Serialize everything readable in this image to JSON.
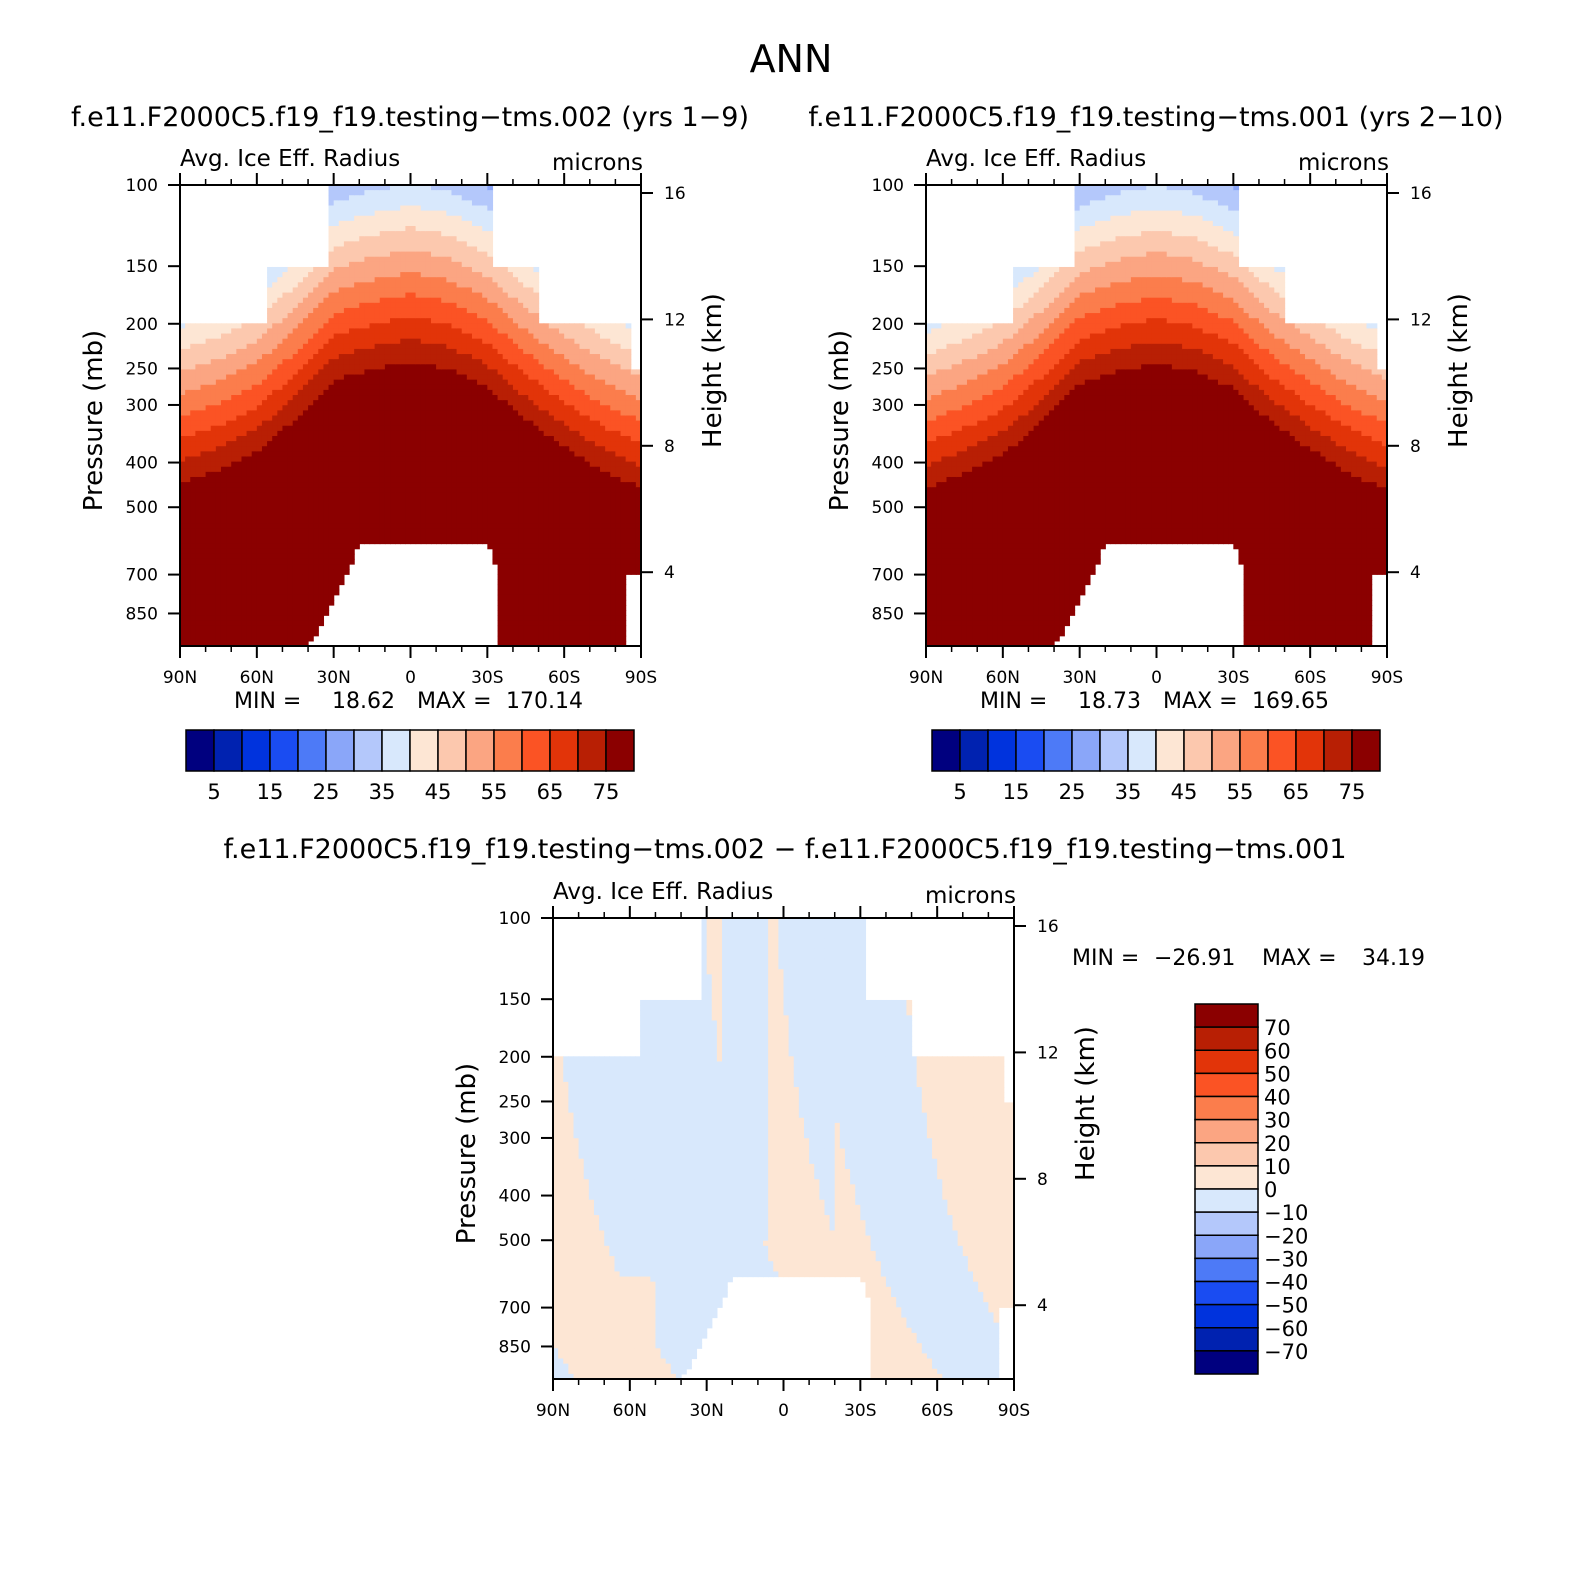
{
  "page_title": "ANN",
  "chart_data": [
    {
      "type": "heatmap",
      "subtype": "latitude-pressure filled contour",
      "title": "f.e11.F2000C5.f19_f19.testing−tms.002 (yrs 1−9)",
      "left_string": "Avg. Ice Eff. Radius",
      "right_string": "microns",
      "xlabel": "",
      "ylabel": "Pressure (mb)",
      "ylabel_right": "Height (km)",
      "x_ticks": [
        "90N",
        "60N",
        "30N",
        "0",
        "30S",
        "60S",
        "90S"
      ],
      "x_values": [
        90,
        60,
        30,
        0,
        -30,
        -60,
        -90
      ],
      "y_ticks": [
        100,
        150,
        200,
        250,
        300,
        400,
        500,
        700,
        850
      ],
      "y_right_ticks": [
        16,
        12,
        8,
        4
      ],
      "y_scale": "log",
      "ylim": [
        100,
        1000
      ],
      "min_label": "MIN =",
      "min_value": "18.62",
      "max_label": "MAX =",
      "max_value": "170.14",
      "colorbar": {
        "orientation": "horizontal",
        "labels": [
          "5",
          "15",
          "25",
          "35",
          "45",
          "55",
          "65",
          "75"
        ],
        "levels": [
          0,
          5,
          10,
          15,
          20,
          25,
          30,
          35,
          40,
          45,
          50,
          55,
          60,
          65,
          70,
          75
        ],
        "colors": [
          "#00007f",
          "#0022b0",
          "#0033dd",
          "#1a4cf2",
          "#4d7af7",
          "#8aa6f9",
          "#b4c8fb",
          "#d8e8fc",
          "#fde6d4",
          "#fcc8ae",
          "#fba582",
          "#fb7d4c",
          "#fb5324",
          "#e23409",
          "#b81f04",
          "#8b0000"
        ]
      },
      "field_profile": {
        "description": "contour band index vs latitude/pressure; bottom surface of high values is tropopause-shaped",
        "lat": [
          90,
          75,
          60,
          45,
          30,
          15,
          0,
          -15,
          -30,
          -45,
          -60,
          -75,
          -90
        ],
        "p_top_of_max_band": [
          470,
          440,
          400,
          340,
          280,
          265,
          255,
          265,
          290,
          340,
          390,
          440,
          480
        ]
      }
    },
    {
      "type": "heatmap",
      "subtype": "latitude-pressure filled contour",
      "title": "f.e11.F2000C5.f19_f19.testing−tms.001 (yrs 2−10)",
      "left_string": "Avg. Ice Eff. Radius",
      "right_string": "microns",
      "xlabel": "",
      "ylabel": "Pressure (mb)",
      "ylabel_right": "Height (km)",
      "x_ticks": [
        "90N",
        "60N",
        "30N",
        "0",
        "30S",
        "60S",
        "90S"
      ],
      "x_values": [
        90,
        60,
        30,
        0,
        -30,
        -60,
        -90
      ],
      "y_ticks": [
        100,
        150,
        200,
        250,
        300,
        400,
        500,
        700,
        850
      ],
      "y_right_ticks": [
        16,
        12,
        8,
        4
      ],
      "y_scale": "log",
      "ylim": [
        100,
        1000
      ],
      "min_label": "MIN =",
      "min_value": "18.73",
      "max_label": "MAX =",
      "max_value": "169.65",
      "colorbar": {
        "orientation": "horizontal",
        "labels": [
          "5",
          "15",
          "25",
          "35",
          "45",
          "55",
          "65",
          "75"
        ],
        "levels": [
          0,
          5,
          10,
          15,
          20,
          25,
          30,
          35,
          40,
          45,
          50,
          55,
          60,
          65,
          70,
          75
        ],
        "colors": [
          "#00007f",
          "#0022b0",
          "#0033dd",
          "#1a4cf2",
          "#4d7af7",
          "#8aa6f9",
          "#b4c8fb",
          "#d8e8fc",
          "#fde6d4",
          "#fcc8ae",
          "#fba582",
          "#fb7d4c",
          "#fb5324",
          "#e23409",
          "#b81f04",
          "#8b0000"
        ]
      },
      "field_profile": {
        "description": "contour band index vs latitude/pressure; bottom surface of high values is tropopause-shaped",
        "lat": [
          90,
          75,
          60,
          45,
          30,
          15,
          0,
          -15,
          -30,
          -45,
          -60,
          -75,
          -90
        ],
        "p_top_of_max_band": [
          480,
          445,
          405,
          345,
          285,
          268,
          258,
          268,
          292,
          345,
          395,
          445,
          485
        ]
      }
    },
    {
      "type": "heatmap",
      "subtype": "latitude-pressure difference filled contour",
      "title": "f.e11.F2000C5.f19_f19.testing−tms.002 − f.e11.F2000C5.f19_f19.testing−tms.001",
      "left_string": "Avg. Ice Eff. Radius",
      "right_string": "microns",
      "xlabel": "",
      "ylabel": "Pressure (mb)",
      "ylabel_right": "Height (km)",
      "x_ticks": [
        "90N",
        "60N",
        "30N",
        "0",
        "30S",
        "60S",
        "90S"
      ],
      "x_values": [
        90,
        60,
        30,
        0,
        -30,
        -60,
        -90
      ],
      "y_ticks": [
        100,
        150,
        200,
        250,
        300,
        400,
        500,
        700,
        850
      ],
      "y_right_ticks": [
        16,
        12,
        8,
        4
      ],
      "y_scale": "log",
      "ylim": [
        100,
        1000
      ],
      "min_label": "MIN =",
      "min_value": "−26.91",
      "max_label": "MAX =",
      "max_value": "34.19",
      "colorbar": {
        "orientation": "vertical",
        "labels": [
          "70",
          "60",
          "50",
          "40",
          "30",
          "20",
          "10",
          "0",
          "−10",
          "−20",
          "−30",
          "−40",
          "−50",
          "−60",
          "−70"
        ],
        "colors_top_to_bottom": [
          "#8b0000",
          "#b81f04",
          "#e23409",
          "#fb5324",
          "#fb7d4c",
          "#fba582",
          "#fcc8ae",
          "#fde6d4",
          "#d8e8fc",
          "#b4c8fb",
          "#8aa6f9",
          "#4d7af7",
          "#1a4cf2",
          "#0033dd",
          "#0022b0",
          "#00007f"
        ]
      },
      "dominant_colors": {
        "negative": "#d8e8fc",
        "positive": "#fde6d4"
      }
    }
  ],
  "colors": {
    "missing": "#ffffff",
    "frame": "#000000"
  }
}
